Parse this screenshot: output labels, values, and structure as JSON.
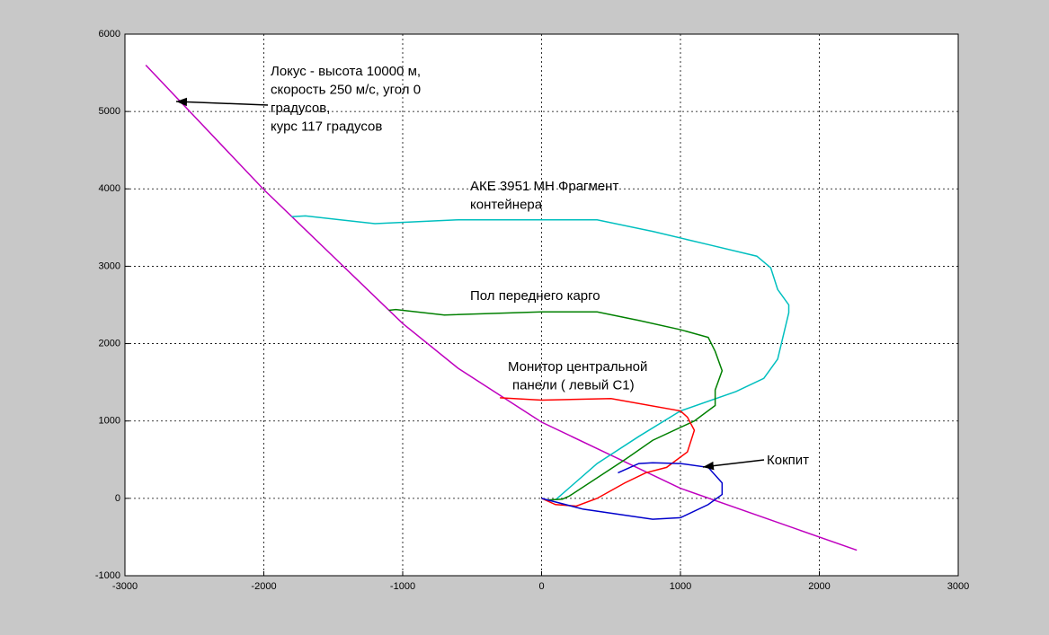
{
  "chart_data": {
    "type": "line",
    "xlim": [
      -3000,
      3000
    ],
    "xticks": [
      -3000,
      -2000,
      -1000,
      0,
      1000,
      2000,
      3000
    ],
    "ylim": [
      -1000,
      6000
    ],
    "yticks": [
      -1000,
      0,
      1000,
      2000,
      3000,
      4000,
      5000,
      6000
    ],
    "grid": true,
    "annotations": [
      {
        "text": [
          "Локус - высота 10000 м,",
          "скорость 250 м/с, угол 0",
          "градусов,",
          "курс 117 градусов"
        ]
      },
      {
        "text": [
          "АКЕ 3951 МН Фрагмент",
          "контейнера"
        ]
      },
      {
        "text": [
          "Пол переднего карго"
        ]
      },
      {
        "text": [
          "Монитор центральной",
          "панели ( левый С1)"
        ]
      },
      {
        "text": [
          "Кокпит"
        ]
      }
    ],
    "series": [
      {
        "color": "#bf00bf",
        "x": [
          -2850,
          -2000,
          -1000,
          -600,
          0,
          1000,
          2270
        ],
        "values": [
          5600,
          3990,
          2260,
          1680,
          985,
          130,
          -670
        ]
      },
      {
        "color": "#00bfbf",
        "x": [
          -1800,
          -1700,
          -1200,
          -600,
          0,
          400,
          800,
          1200,
          1550,
          1650,
          1700,
          1780,
          1780,
          1700,
          1600,
          1400,
          1000,
          700,
          400,
          100
        ],
        "values": [
          3640,
          3650,
          3550,
          3600,
          3600,
          3600,
          3450,
          3280,
          3130,
          2980,
          2700,
          2500,
          2400,
          1800,
          1550,
          1380,
          1130,
          800,
          450,
          -20
        ]
      },
      {
        "color": "#008000",
        "x": [
          -1100,
          -1050,
          -700,
          0,
          400,
          700,
          1000,
          1200,
          1250,
          1300,
          1250,
          1250,
          1100,
          800,
          600,
          200,
          150,
          50
        ],
        "values": [
          2430,
          2440,
          2370,
          2410,
          2410,
          2300,
          2180,
          2080,
          1900,
          1650,
          1400,
          1200,
          1000,
          750,
          500,
          30,
          -10,
          -20
        ]
      },
      {
        "color": "#ff0000",
        "x": [
          -300,
          0,
          500,
          1000,
          1050,
          1100,
          1050,
          900,
          750,
          600,
          400,
          250,
          100,
          0
        ],
        "values": [
          1300,
          1270,
          1290,
          1130,
          1050,
          880,
          600,
          400,
          330,
          200,
          0,
          -100,
          -80,
          0
        ]
      },
      {
        "color": "#0000cc",
        "x": [
          0,
          300,
          800,
          1000,
          1200,
          1300,
          1300,
          1200,
          1000,
          800,
          700,
          550
        ],
        "values": [
          0,
          -140,
          -270,
          -250,
          -80,
          50,
          200,
          400,
          450,
          460,
          450,
          330
        ]
      }
    ]
  }
}
